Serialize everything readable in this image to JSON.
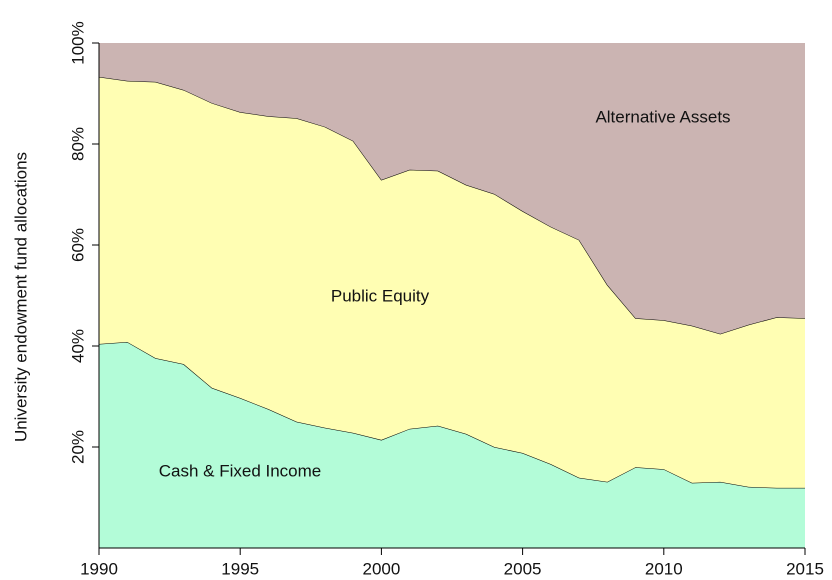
{
  "chart_data": {
    "type": "stacked-area",
    "ylabel": "University endowment fund allocations",
    "x": [
      1990,
      1991,
      1992,
      1993,
      1994,
      1995,
      1996,
      1997,
      1998,
      1999,
      2000,
      2001,
      2002,
      2003,
      2004,
      2005,
      2006,
      2007,
      2008,
      2009,
      2010,
      2011,
      2012,
      2013,
      2014,
      2015
    ],
    "series": [
      {
        "name": "Cash & Fixed Income",
        "color": "#b3fcd8",
        "values": [
          40.4,
          40.8,
          37.6,
          36.4,
          31.7,
          29.7,
          27.5,
          25.0,
          23.8,
          22.8,
          21.4,
          23.6,
          24.2,
          22.6,
          20.0,
          18.8,
          16.6,
          13.9,
          13.1,
          16.0,
          15.6,
          12.9,
          13.1,
          12.1,
          11.9,
          11.9
        ]
      },
      {
        "name": "Public Equity",
        "color": "#fffeb3",
        "values": [
          52.9,
          51.7,
          54.7,
          54.3,
          56.4,
          56.6,
          58.0,
          60.1,
          59.6,
          57.8,
          51.5,
          51.3,
          50.5,
          49.3,
          50.1,
          47.9,
          47.0,
          47.1,
          39.0,
          29.5,
          29.5,
          31.1,
          29.3,
          32.1,
          33.8,
          33.6
        ]
      },
      {
        "name": "Alternative Assets",
        "color": "#cbb4b2",
        "values": [
          6.7,
          7.5,
          7.7,
          9.3,
          11.9,
          13.7,
          14.5,
          14.9,
          16.6,
          19.4,
          27.1,
          25.1,
          25.3,
          28.1,
          29.9,
          33.3,
          36.4,
          39.0,
          47.9,
          54.5,
          54.9,
          56.0,
          57.6,
          55.8,
          54.3,
          54.5
        ]
      }
    ],
    "xlim": [
      1990,
      2015
    ],
    "xticks": [
      1990,
      1995,
      2000,
      2005,
      2010,
      2015
    ],
    "ylim": [
      0,
      100
    ],
    "yticks": [
      {
        "value": 20,
        "label": "20%"
      },
      {
        "value": 40,
        "label": "40%"
      },
      {
        "value": 60,
        "label": "60%"
      },
      {
        "value": 80,
        "label": "80%"
      },
      {
        "value": 100,
        "label": "100%"
      }
    ]
  }
}
